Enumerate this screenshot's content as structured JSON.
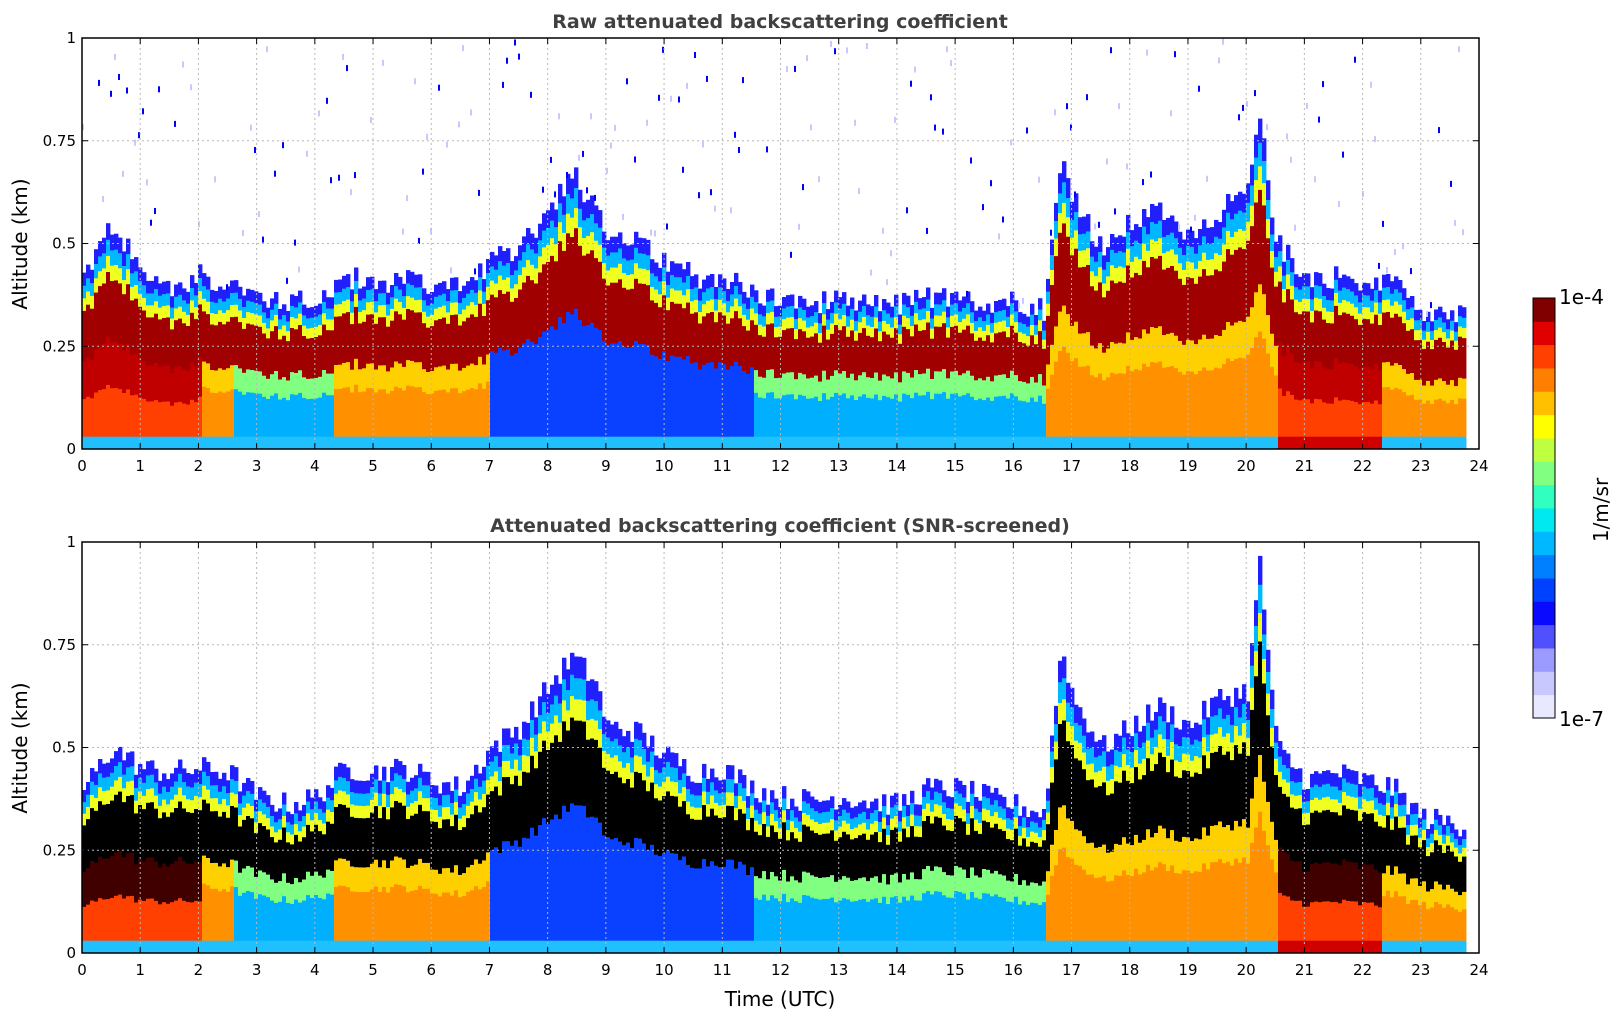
{
  "chart_data": [
    {
      "type": "heatmap",
      "title": "Raw attenuated backscattering coefficient",
      "xlabel": "",
      "ylabel": "Altitude (km)",
      "xlim": [
        0,
        24
      ],
      "ylim": [
        0,
        1
      ],
      "xticks": [
        "0",
        "1",
        "2",
        "3",
        "4",
        "5",
        "6",
        "7",
        "8",
        "9",
        "10",
        "11",
        "12",
        "13",
        "14",
        "15",
        "16",
        "17",
        "18",
        "19",
        "20",
        "21",
        "22",
        "23",
        "24"
      ],
      "yticks": [
        "0",
        "0.25",
        "0.5",
        "0.75",
        "1"
      ],
      "grid": true,
      "data_end_hour": 23.75,
      "screened": false,
      "layer_top_km": [
        [
          0,
          0.42
        ],
        [
          0.5,
          0.55
        ],
        [
          1,
          0.42
        ],
        [
          1.5,
          0.4
        ],
        [
          2,
          0.42
        ],
        [
          2.5,
          0.4
        ],
        [
          3,
          0.37
        ],
        [
          3.5,
          0.36
        ],
        [
          4,
          0.36
        ],
        [
          4.5,
          0.42
        ],
        [
          5,
          0.4
        ],
        [
          5.5,
          0.42
        ],
        [
          6,
          0.4
        ],
        [
          6.5,
          0.4
        ],
        [
          7,
          0.45
        ],
        [
          7.5,
          0.5
        ],
        [
          8,
          0.58
        ],
        [
          8.4,
          0.68
        ],
        [
          9,
          0.52
        ],
        [
          9.5,
          0.5
        ],
        [
          10,
          0.45
        ],
        [
          10.5,
          0.42
        ],
        [
          11,
          0.42
        ],
        [
          11.5,
          0.38
        ],
        [
          12,
          0.36
        ],
        [
          12.5,
          0.36
        ],
        [
          13,
          0.36
        ],
        [
          13.5,
          0.35
        ],
        [
          14,
          0.35
        ],
        [
          14.5,
          0.37
        ],
        [
          15,
          0.36
        ],
        [
          15.5,
          0.36
        ],
        [
          16,
          0.36
        ],
        [
          16.5,
          0.34
        ],
        [
          16.8,
          0.7
        ],
        [
          17,
          0.62
        ],
        [
          17.5,
          0.48
        ],
        [
          18,
          0.55
        ],
        [
          18.5,
          0.58
        ],
        [
          19,
          0.52
        ],
        [
          19.5,
          0.58
        ],
        [
          20,
          0.62
        ],
        [
          20.2,
          0.8
        ],
        [
          20.5,
          0.5
        ],
        [
          21,
          0.42
        ],
        [
          21.5,
          0.42
        ],
        [
          22,
          0.4
        ],
        [
          22.5,
          0.4
        ],
        [
          23,
          0.34
        ],
        [
          23.75,
          0.32
        ]
      ]
    },
    {
      "type": "heatmap",
      "title": "Attenuated backscattering coefficient (SNR-screened)",
      "xlabel": "Time (UTC)",
      "ylabel": "Altitude (km)",
      "xlim": [
        0,
        24
      ],
      "ylim": [
        0,
        1
      ],
      "xticks": [
        "0",
        "1",
        "2",
        "3",
        "4",
        "5",
        "6",
        "7",
        "8",
        "9",
        "10",
        "11",
        "12",
        "13",
        "14",
        "15",
        "16",
        "17",
        "18",
        "19",
        "20",
        "21",
        "22",
        "23",
        "24"
      ],
      "yticks": [
        "0",
        "0.25",
        "0.5",
        "0.75",
        "1"
      ],
      "grid": true,
      "data_end_hour": 23.75,
      "screened": true,
      "layer_top_km": [
        [
          0,
          0.4
        ],
        [
          0.5,
          0.5
        ],
        [
          1,
          0.45
        ],
        [
          1.5,
          0.44
        ],
        [
          2,
          0.45
        ],
        [
          2.5,
          0.44
        ],
        [
          3,
          0.38
        ],
        [
          3.5,
          0.36
        ],
        [
          4,
          0.38
        ],
        [
          4.5,
          0.45
        ],
        [
          5,
          0.44
        ],
        [
          5.5,
          0.45
        ],
        [
          6,
          0.42
        ],
        [
          6.5,
          0.4
        ],
        [
          7,
          0.5
        ],
        [
          7.5,
          0.55
        ],
        [
          8,
          0.65
        ],
        [
          8.4,
          0.72
        ],
        [
          8.8,
          0.66
        ],
        [
          9,
          0.55
        ],
        [
          9.5,
          0.54
        ],
        [
          10,
          0.48
        ],
        [
          10.5,
          0.44
        ],
        [
          11,
          0.45
        ],
        [
          11.5,
          0.4
        ],
        [
          12,
          0.38
        ],
        [
          12.5,
          0.37
        ],
        [
          13,
          0.38
        ],
        [
          13.5,
          0.37
        ],
        [
          14,
          0.36
        ],
        [
          14.5,
          0.4
        ],
        [
          15,
          0.4
        ],
        [
          15.5,
          0.38
        ],
        [
          16,
          0.36
        ],
        [
          16.5,
          0.34
        ],
        [
          16.8,
          0.75
        ],
        [
          17,
          0.62
        ],
        [
          17.5,
          0.5
        ],
        [
          18,
          0.55
        ],
        [
          18.5,
          0.6
        ],
        [
          19,
          0.55
        ],
        [
          19.5,
          0.62
        ],
        [
          20,
          0.64
        ],
        [
          20.2,
          0.95
        ],
        [
          20.5,
          0.5
        ],
        [
          21,
          0.42
        ],
        [
          21.5,
          0.44
        ],
        [
          22,
          0.42
        ],
        [
          22.5,
          0.4
        ],
        [
          23,
          0.33
        ],
        [
          23.75,
          0.31
        ]
      ]
    }
  ],
  "colorbar": {
    "label": "1/m/sr",
    "max_label": "1e-4",
    "min_label": "1e-7",
    "colors": [
      "#e8e8ff",
      "#c8c8ff",
      "#9a9aff",
      "#5050ff",
      "#0a0aff",
      "#0040ff",
      "#0080ff",
      "#00b8ff",
      "#00e8f0",
      "#30ffc0",
      "#80ff80",
      "#c0ff40",
      "#ffff00",
      "#ffc000",
      "#ff8000",
      "#ff4000",
      "#e00000",
      "#800000"
    ]
  }
}
